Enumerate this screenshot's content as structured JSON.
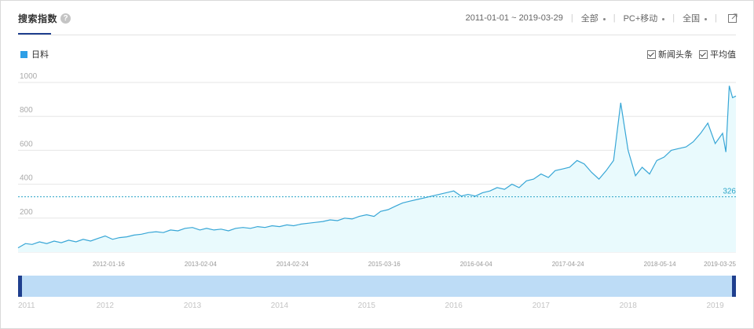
{
  "header": {
    "title": "搜索指数",
    "help_icon_text": "?",
    "date_range": "2011-01-01 ~ 2019-03-29",
    "device_scope": "全部",
    "platform": "PC+移动",
    "region": "全国"
  },
  "legend": {
    "series_label": "日料",
    "news_label": "新闻头条",
    "avg_label": "平均值"
  },
  "colors": {
    "line": "#37a6d6",
    "fill": "#e9fafd",
    "avg": "#2aa4c8",
    "accent": "#1f3f8e",
    "slider_bg": "#bddcf6",
    "slider_handle": "#1f3f8e"
  },
  "chart_data": {
    "type": "area",
    "y_ticks": [
      "200",
      "400",
      "600",
      "800",
      "1000"
    ],
    "ylim": [
      0,
      1000
    ],
    "x_range": [
      "2011-01-01",
      "2019-03-29"
    ],
    "x_tick_labels": [
      "2012-01-16",
      "2013-02-04",
      "2014-02-24",
      "2015-03-16",
      "2016-04-04",
      "2017-04-24",
      "2018-05-14",
      "2019-03-25"
    ],
    "average_value": "326",
    "series": [
      {
        "name": "日料",
        "points": [
          [
            "2011-01-01",
            25
          ],
          [
            "2011-02-01",
            50
          ],
          [
            "2011-03-01",
            45
          ],
          [
            "2011-04-01",
            60
          ],
          [
            "2011-05-01",
            50
          ],
          [
            "2011-06-01",
            65
          ],
          [
            "2011-07-01",
            55
          ],
          [
            "2011-08-01",
            70
          ],
          [
            "2011-09-01",
            60
          ],
          [
            "2011-10-01",
            75
          ],
          [
            "2011-11-01",
            65
          ],
          [
            "2011-12-01",
            80
          ],
          [
            "2012-01-01",
            95
          ],
          [
            "2012-02-01",
            75
          ],
          [
            "2012-03-01",
            85
          ],
          [
            "2012-04-01",
            90
          ],
          [
            "2012-05-01",
            100
          ],
          [
            "2012-06-01",
            105
          ],
          [
            "2012-07-01",
            115
          ],
          [
            "2012-08-01",
            120
          ],
          [
            "2012-09-01",
            115
          ],
          [
            "2012-10-01",
            130
          ],
          [
            "2012-11-01",
            125
          ],
          [
            "2012-12-01",
            140
          ],
          [
            "2013-01-01",
            145
          ],
          [
            "2013-02-01",
            130
          ],
          [
            "2013-03-01",
            140
          ],
          [
            "2013-04-01",
            130
          ],
          [
            "2013-05-01",
            135
          ],
          [
            "2013-06-01",
            125
          ],
          [
            "2013-07-01",
            140
          ],
          [
            "2013-08-01",
            145
          ],
          [
            "2013-09-01",
            140
          ],
          [
            "2013-10-01",
            150
          ],
          [
            "2013-11-01",
            145
          ],
          [
            "2013-12-01",
            155
          ],
          [
            "2014-01-01",
            150
          ],
          [
            "2014-02-01",
            160
          ],
          [
            "2014-03-01",
            155
          ],
          [
            "2014-04-01",
            165
          ],
          [
            "2014-05-01",
            170
          ],
          [
            "2014-06-01",
            175
          ],
          [
            "2014-07-01",
            180
          ],
          [
            "2014-08-01",
            190
          ],
          [
            "2014-09-01",
            185
          ],
          [
            "2014-10-01",
            200
          ],
          [
            "2014-11-01",
            195
          ],
          [
            "2014-12-01",
            210
          ],
          [
            "2015-01-01",
            220
          ],
          [
            "2015-02-01",
            210
          ],
          [
            "2015-03-01",
            240
          ],
          [
            "2015-04-01",
            250
          ],
          [
            "2015-05-01",
            270
          ],
          [
            "2015-06-01",
            290
          ],
          [
            "2015-07-01",
            300
          ],
          [
            "2015-08-01",
            310
          ],
          [
            "2015-09-01",
            320
          ],
          [
            "2015-10-01",
            330
          ],
          [
            "2015-11-01",
            340
          ],
          [
            "2015-12-01",
            350
          ],
          [
            "2016-01-01",
            360
          ],
          [
            "2016-02-01",
            330
          ],
          [
            "2016-03-01",
            340
          ],
          [
            "2016-04-01",
            330
          ],
          [
            "2016-05-01",
            350
          ],
          [
            "2016-06-01",
            360
          ],
          [
            "2016-07-01",
            380
          ],
          [
            "2016-08-01",
            370
          ],
          [
            "2016-09-01",
            400
          ],
          [
            "2016-10-01",
            380
          ],
          [
            "2016-11-01",
            420
          ],
          [
            "2016-12-01",
            430
          ],
          [
            "2017-01-01",
            460
          ],
          [
            "2017-02-01",
            440
          ],
          [
            "2017-03-01",
            480
          ],
          [
            "2017-04-01",
            490
          ],
          [
            "2017-05-01",
            500
          ],
          [
            "2017-06-01",
            540
          ],
          [
            "2017-07-01",
            520
          ],
          [
            "2017-08-01",
            470
          ],
          [
            "2017-09-01",
            430
          ],
          [
            "2017-10-01",
            480
          ],
          [
            "2017-11-01",
            540
          ],
          [
            "2017-12-01",
            880
          ],
          [
            "2018-01-01",
            600
          ],
          [
            "2018-02-01",
            450
          ],
          [
            "2018-03-01",
            500
          ],
          [
            "2018-04-01",
            460
          ],
          [
            "2018-05-01",
            540
          ],
          [
            "2018-06-01",
            560
          ],
          [
            "2018-07-01",
            600
          ],
          [
            "2018-08-01",
            610
          ],
          [
            "2018-09-01",
            620
          ],
          [
            "2018-10-01",
            650
          ],
          [
            "2018-11-01",
            700
          ],
          [
            "2018-12-01",
            760
          ],
          [
            "2019-01-01",
            640
          ],
          [
            "2019-02-01",
            700
          ],
          [
            "2019-02-15",
            590
          ],
          [
            "2019-03-01",
            980
          ],
          [
            "2019-03-15",
            910
          ],
          [
            "2019-03-29",
            920
          ]
        ]
      }
    ],
    "slider_years": [
      "2011",
      "2012",
      "2013",
      "2014",
      "2015",
      "2016",
      "2017",
      "2018",
      "2019"
    ]
  }
}
